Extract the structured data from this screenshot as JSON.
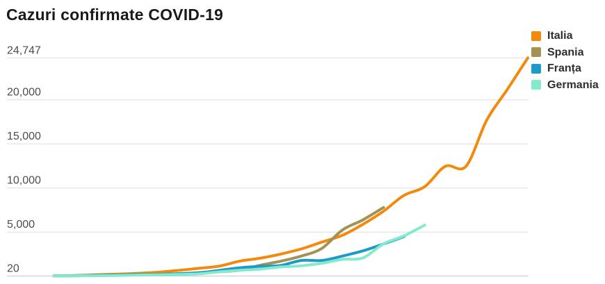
{
  "chart_data": {
    "type": "line",
    "title": "Cazuri confirmate COVID-19",
    "legend_position": "top-right",
    "y_axis": {
      "grid": true,
      "range": [
        20,
        24747
      ],
      "ticks": [
        {
          "label": "24,747",
          "value": 24747
        },
        {
          "label": "20,000",
          "value": 20000
        },
        {
          "label": "15,000",
          "value": 15000
        },
        {
          "label": "10,000",
          "value": 10000
        },
        {
          "label": "5,000",
          "value": 5000
        },
        {
          "label": "20",
          "value": 20
        }
      ]
    },
    "x_axis": {
      "visible_tick_labels": []
    },
    "series": [
      {
        "name": "Italia",
        "color": "#F28A0D",
        "values": [
          20,
          79,
          150,
          227,
          320,
          445,
          650,
          888,
          1128,
          1694,
          2036,
          2502,
          3089,
          3858,
          4636,
          5883,
          7375,
          9172,
          10149,
          12462,
          12462,
          17660,
          21157,
          24747
        ]
      },
      {
        "name": "Spania",
        "color": "#A39254",
        "values": [
          32,
          45,
          84,
          120,
          165,
          222,
          259,
          400,
          500,
          673,
          1231,
          1695,
          2277,
          3146,
          5232,
          6391,
          7798
        ]
      },
      {
        "name": "Franța",
        "color": "#1E9AC8",
        "values": [
          38,
          57,
          100,
          130,
          191,
          204,
          285,
          377,
          653,
          949,
          1126,
          1209,
          1784,
          1784,
          2281,
          2876,
          3661,
          4499
        ]
      },
      {
        "name": "Germania",
        "color": "#85EACD",
        "values": [
          27,
          46,
          48,
          79,
          130,
          159,
          196,
          262,
          482,
          670,
          799,
          1040,
          1176,
          1457,
          1908,
          2078,
          3675,
          4585,
          5795
        ]
      }
    ]
  },
  "colors": {
    "background": "#FFFFFF",
    "title_text": "#1A1A1A",
    "tick_text": "#4D4D4D",
    "legend_text": "#2E2E2E",
    "grid": "#DEDEDE",
    "baseline": "#C6C6C6"
  }
}
